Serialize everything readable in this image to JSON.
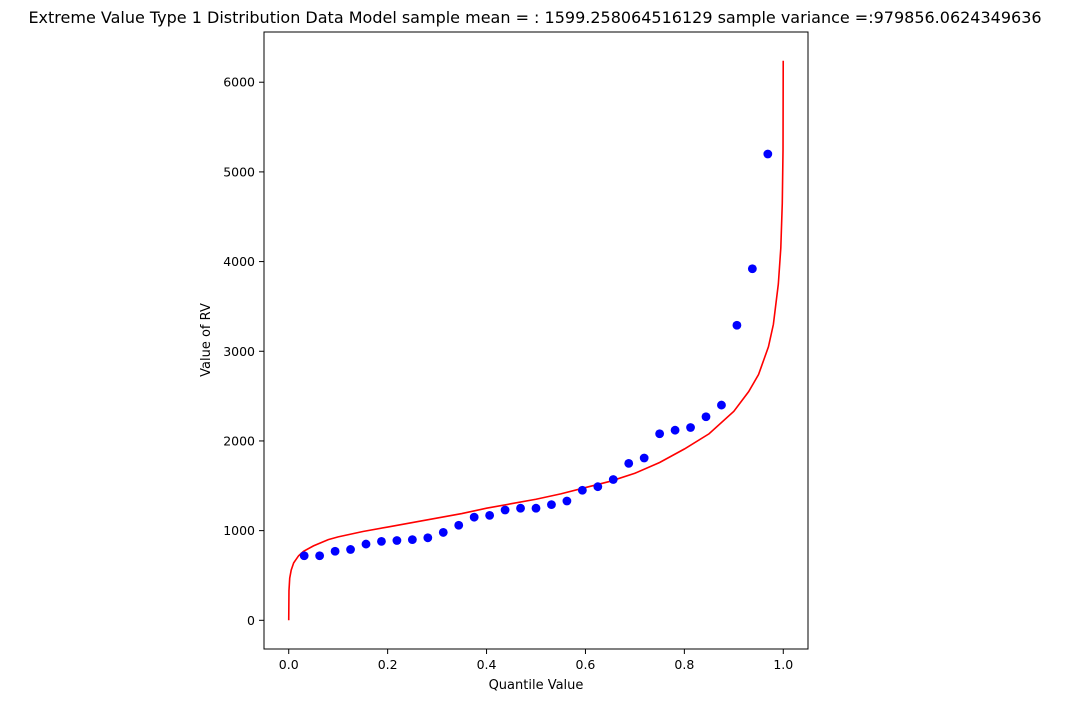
{
  "chart_data": {
    "type": "scatter",
    "title": "Extreme Value Type 1 Distribution Data Model sample mean = : 1599.258064516129 sample variance =:979856.0624349636",
    "xlabel": "Quantile Value",
    "ylabel": "Value of RV",
    "xlim": [
      -0.05,
      1.05
    ],
    "ylim": [
      -320,
      6560
    ],
    "xticks": [
      0.0,
      0.2,
      0.4,
      0.6,
      0.8,
      1.0
    ],
    "xtick_labels": [
      "0.0",
      "0.2",
      "0.4",
      "0.6",
      "0.8",
      "1.0"
    ],
    "yticks": [
      0,
      1000,
      2000,
      3000,
      4000,
      5000,
      6000
    ],
    "ytick_labels": [
      "0",
      "1000",
      "2000",
      "3000",
      "4000",
      "5000",
      "6000"
    ],
    "grid": false,
    "colors": {
      "points": "#0000ff",
      "curve": "#ff0000"
    },
    "points": {
      "x": [
        0.03125,
        0.0625,
        0.09375,
        0.125,
        0.15625,
        0.1875,
        0.21875,
        0.25,
        0.28125,
        0.3125,
        0.34375,
        0.375,
        0.40625,
        0.4375,
        0.46875,
        0.5,
        0.53125,
        0.5625,
        0.59375,
        0.625,
        0.65625,
        0.6875,
        0.71875,
        0.75,
        0.78125,
        0.8125,
        0.84375,
        0.875,
        0.90625,
        0.9375,
        0.96875
      ],
      "y": [
        720,
        720,
        770,
        790,
        850,
        880,
        890,
        900,
        920,
        980,
        1060,
        1150,
        1170,
        1230,
        1250,
        1250,
        1290,
        1330,
        1450,
        1490,
        1570,
        1750,
        1810,
        2080,
        2120,
        2150,
        2270,
        2400,
        3290,
        3920,
        5200
      ]
    },
    "curve": {
      "x": [
        0.0,
        0.0005,
        0.002,
        0.005,
        0.01,
        0.02,
        0.03,
        0.05,
        0.08,
        0.1,
        0.15,
        0.2,
        0.25,
        0.3,
        0.35,
        0.4,
        0.45,
        0.5,
        0.55,
        0.6,
        0.65,
        0.7,
        0.75,
        0.8,
        0.85,
        0.9,
        0.93,
        0.95,
        0.97,
        0.98,
        0.99,
        0.995,
        0.998,
        0.9995,
        0.9999
      ],
      "y": [
        0,
        330,
        470,
        560,
        640,
        720,
        770,
        830,
        900,
        930,
        990,
        1040,
        1090,
        1140,
        1190,
        1250,
        1300,
        1350,
        1410,
        1480,
        1550,
        1640,
        1760,
        1910,
        2080,
        2330,
        2550,
        2740,
        3050,
        3300,
        3750,
        4150,
        4650,
        5250,
        6240
      ]
    }
  }
}
